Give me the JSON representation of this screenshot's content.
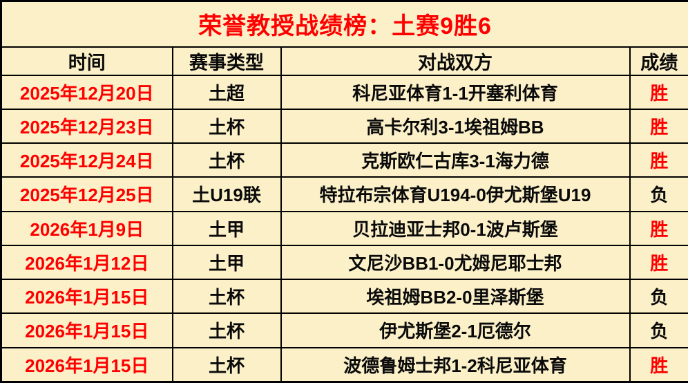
{
  "colors": {
    "background": "#fbf0c8",
    "border": "#000000",
    "accent_red": "#fe0000",
    "text_black": "#0a0a0a"
  },
  "chart_data": {
    "type": "table",
    "title": "荣誉教授战绩榜：土赛9胜6",
    "columns": [
      "时间",
      "赛事类型",
      "对战双方",
      "成绩"
    ],
    "rows": [
      {
        "date": "2025年12月20日",
        "type": "土超",
        "match": "科尼亚体育1-1开塞利体育",
        "result": "胜",
        "win": true
      },
      {
        "date": "2025年12月23日",
        "type": "土杯",
        "match": "高卡尔利3-1埃祖姆BB",
        "result": "胜",
        "win": true
      },
      {
        "date": "2025年12月24日",
        "type": "土杯",
        "match": "克斯欧仁古库3-1海力德",
        "result": "胜",
        "win": true
      },
      {
        "date": "2025年12月25日",
        "type": "土U19联",
        "match": "特拉布宗体育U194-0伊尤斯堡U19",
        "result": "负",
        "win": false
      },
      {
        "date": "2026年1月9日",
        "type": "土甲",
        "match": "贝拉迪亚士邦0-1波卢斯堡",
        "result": "胜",
        "win": true
      },
      {
        "date": "2026年1月12日",
        "type": "土甲",
        "match": "文尼沙BB1-0尤姆尼耶士邦",
        "result": "胜",
        "win": true
      },
      {
        "date": "2026年1月15日",
        "type": "土杯",
        "match": "埃祖姆BB2-0里泽斯堡",
        "result": "负",
        "win": false
      },
      {
        "date": "2026年1月15日",
        "type": "土杯",
        "match": "伊尤斯堡2-1厄德尔",
        "result": "负",
        "win": false
      },
      {
        "date": "2026年1月15日",
        "type": "土杯",
        "match": "波德鲁姆士邦1-2科尼亚体育",
        "result": "胜",
        "win": true
      }
    ]
  }
}
